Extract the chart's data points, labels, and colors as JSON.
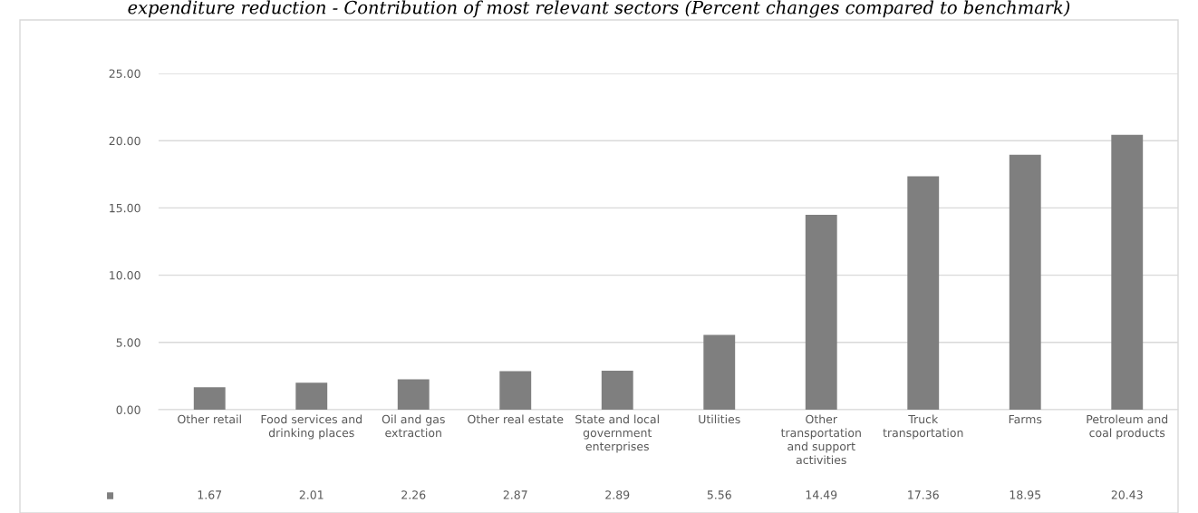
{
  "chart_data": {
    "type": "bar",
    "title": "expenditure reduction - Contribution of most relevant sectors (Percent changes compared to benchmark)",
    "categories": [
      "Other retail",
      "Food services and\ndrinking places",
      "Oil and gas\nextraction",
      "Other real estate",
      "State and local\ngovernment\nenterprises",
      "Utilities",
      "Other\ntransportation\nand support\nactivities",
      "Truck\ntransportation",
      "Farms",
      "Petroleum and\ncoal products"
    ],
    "values": [
      1.67,
      2.01,
      2.26,
      2.87,
      2.89,
      5.56,
      14.49,
      17.36,
      18.95,
      20.43
    ],
    "color": "#7f7f7f",
    "ylim": [
      0,
      25
    ],
    "yticks": [
      {
        "value": 0,
        "label": "0.00"
      },
      {
        "value": 5,
        "label": "5.00"
      },
      {
        "value": 10,
        "label": "10.00"
      },
      {
        "value": 15,
        "label": "15.00"
      },
      {
        "value": 20,
        "label": "20.00"
      },
      {
        "value": 25,
        "label": "25.00"
      }
    ],
    "grid": "y",
    "data_labels": true
  }
}
